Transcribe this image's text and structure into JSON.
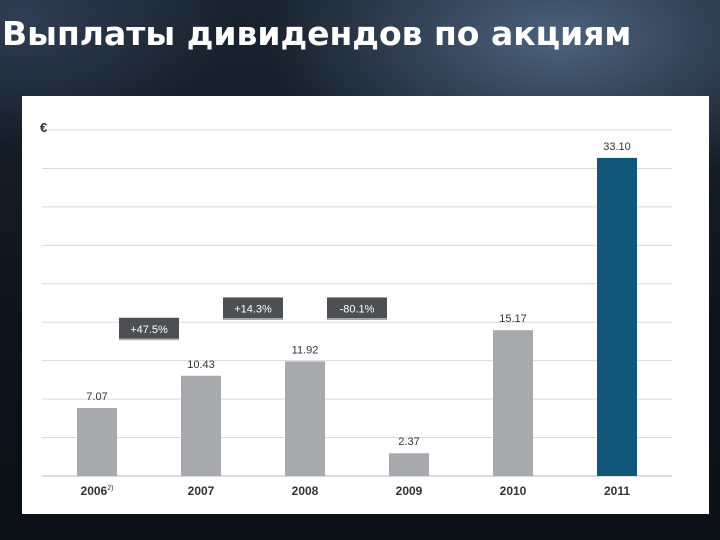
{
  "slide": {
    "title": "Выплаты дивидендов по акциям"
  },
  "chart_data": {
    "type": "bar",
    "ylabel": "€",
    "ylim": [
      0,
      36
    ],
    "grid": true,
    "categories": [
      "2006",
      "2007",
      "2008",
      "2009",
      "2010",
      "2011"
    ],
    "category_superscripts": [
      "2)",
      "",
      "",
      "",
      "",
      ""
    ],
    "values": [
      7.07,
      10.43,
      11.92,
      2.37,
      15.17,
      33.1
    ],
    "value_labels": [
      "7.07",
      "10.43",
      "11.92",
      "2.37",
      "15.17",
      "33.10"
    ],
    "bar_colors": [
      "#a7a9ac",
      "#a7a9ac",
      "#a7a9ac",
      "#a7a9ac",
      "#a7a9ac",
      "#12577a"
    ],
    "annotations": [
      {
        "text": "+47.5%",
        "between": [
          0,
          1
        ]
      },
      {
        "text": "+14.3%",
        "between": [
          1,
          2
        ]
      },
      {
        "text": "-80.1%",
        "between": [
          2,
          3
        ]
      }
    ],
    "colors": {
      "bar": "#a7a9ac",
      "highlight_bar": "#12577a",
      "annotation_box": "#4d4f53",
      "grid": "#d9dadb"
    }
  }
}
